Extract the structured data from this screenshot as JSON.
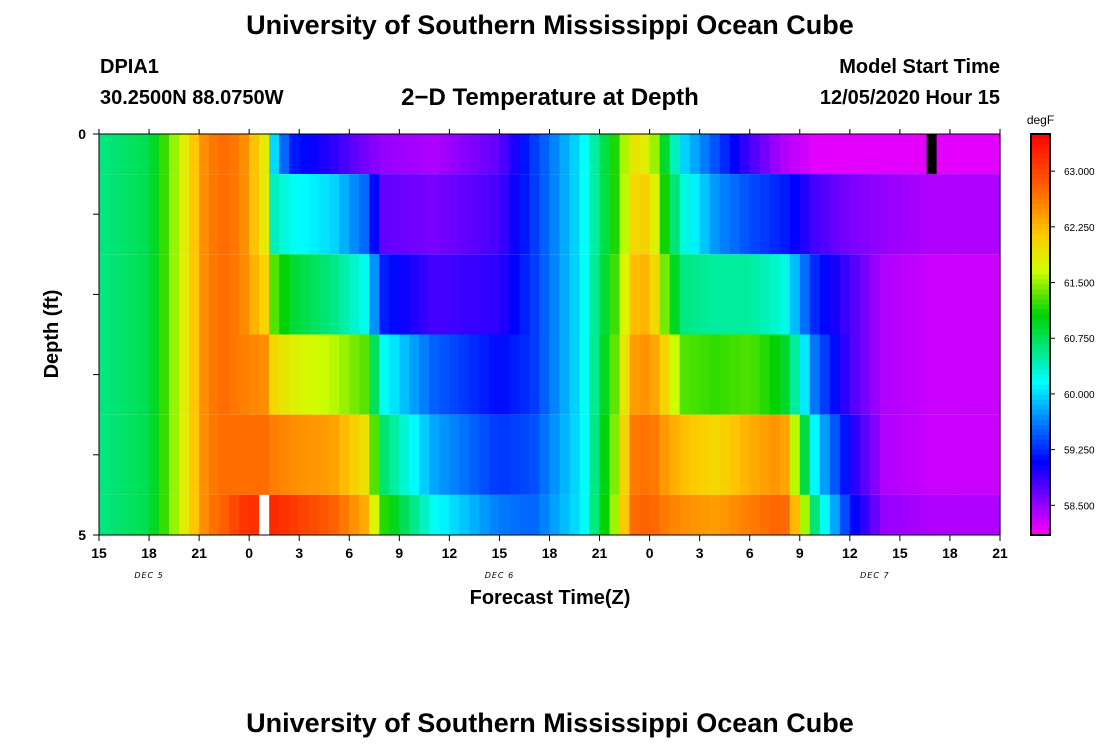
{
  "header": {
    "title": "University of Southern Mississippi Ocean Cube",
    "station": "DPIA1",
    "coords": "30.2500N 88.0750W",
    "plot_title": "2−D Temperature at Depth",
    "start_label": "Model Start Time",
    "start_value": "12/05/2020 Hour 15"
  },
  "footer": {
    "title": "University of Southern Mississippi Ocean Cube"
  },
  "chart_data": {
    "type": "heatmap",
    "title": "2−D Temperature at Depth",
    "xlabel": "Forecast Time(Z)",
    "ylabel": "Depth (ft)",
    "x_tick_labels": [
      "15",
      "18",
      "21",
      "0",
      "3",
      "6",
      "9",
      "12",
      "15",
      "18",
      "21",
      "0",
      "3",
      "6",
      "9",
      "12",
      "15",
      "18",
      "21"
    ],
    "day_labels": [
      {
        "label": "DEC 5",
        "tick_index": 1
      },
      {
        "label": "DEC 6",
        "tick_index": 8
      },
      {
        "label": "DEC 7",
        "tick_index": 15.5
      }
    ],
    "y_tick_labels": [
      "0",
      "5"
    ],
    "ylim": [
      0,
      5
    ],
    "x_range_hours": [
      0,
      54
    ],
    "colorbar": {
      "unit": "degF",
      "labels": [
        "63.000",
        "62.250",
        "61.500",
        "60.750",
        "60.000",
        "59.250",
        "58.500"
      ],
      "range": [
        58.1,
        63.5
      ]
    },
    "depth_levels": [
      "0-0.5",
      "0.5-1.5",
      "1.5-2.5",
      "2.5-3.5",
      "3.5-4.5",
      "4.5-5"
    ],
    "keyframes_hours": [
      0,
      3,
      4.5,
      6.5,
      7.5,
      8.5,
      10,
      10.5,
      11.5,
      14,
      16,
      17,
      20,
      24,
      26,
      29,
      31,
      32,
      33,
      34,
      35,
      37,
      39,
      41,
      42,
      43,
      45,
      47,
      50,
      54
    ],
    "temperature_degF": [
      [
        60.6,
        60.8,
        61.5,
        62.6,
        62.7,
        62.6,
        61.8,
        60.0,
        59.2,
        58.9,
        58.6,
        58.5,
        58.4,
        58.7,
        59.3,
        60.1,
        61.2,
        61.9,
        61.8,
        60.8,
        60.0,
        59.4,
        58.8,
        58.4,
        58.3,
        58.2,
        58.2,
        58.2,
        58.2,
        58.2
      ],
      [
        60.6,
        60.8,
        61.5,
        62.6,
        62.7,
        62.6,
        61.8,
        60.4,
        60.2,
        60.0,
        59.5,
        58.7,
        58.6,
        58.8,
        59.3,
        60.1,
        61.2,
        62.0,
        62.1,
        61.0,
        60.3,
        59.7,
        59.4,
        59.2,
        59.0,
        58.8,
        58.6,
        58.5,
        58.4,
        58.4
      ],
      [
        60.6,
        60.8,
        61.5,
        62.6,
        62.7,
        62.6,
        62.0,
        61.3,
        60.9,
        60.6,
        60.2,
        59.2,
        58.8,
        58.9,
        59.3,
        60.1,
        61.3,
        62.2,
        62.3,
        61.3,
        60.6,
        60.5,
        60.5,
        60.3,
        59.7,
        59.2,
        58.8,
        58.4,
        58.3,
        58.3
      ],
      [
        60.6,
        60.8,
        61.5,
        62.6,
        62.7,
        62.6,
        62.5,
        62.0,
        61.8,
        61.6,
        61.3,
        60.2,
        59.5,
        59.1,
        59.3,
        60.1,
        61.4,
        62.4,
        62.5,
        62.0,
        61.3,
        61.2,
        61.3,
        61.0,
        60.3,
        59.5,
        58.8,
        58.4,
        58.3,
        58.3
      ],
      [
        60.6,
        60.8,
        61.5,
        62.6,
        62.7,
        62.7,
        62.7,
        62.6,
        62.5,
        62.4,
        61.9,
        60.7,
        59.8,
        59.3,
        59.4,
        60.1,
        61.5,
        62.6,
        62.7,
        62.4,
        62.2,
        62.0,
        62.3,
        62.5,
        61.2,
        60.0,
        59.0,
        58.4,
        58.3,
        58.3
      ],
      [
        60.6,
        60.8,
        61.5,
        62.6,
        62.8,
        63.1,
        63.2,
        63.2,
        63.1,
        62.8,
        62.3,
        61.2,
        60.2,
        59.6,
        59.5,
        60.1,
        61.6,
        62.7,
        62.8,
        62.6,
        62.5,
        62.4,
        62.6,
        62.8,
        62.0,
        60.5,
        59.2,
        58.5,
        58.4,
        58.4
      ]
    ],
    "missing_cells": [
      {
        "depth_level": 5,
        "hour": 9.6,
        "fill": "#ffffff"
      },
      {
        "depth_level": 0,
        "hour": 49.6,
        "fill": "#000000"
      }
    ]
  }
}
